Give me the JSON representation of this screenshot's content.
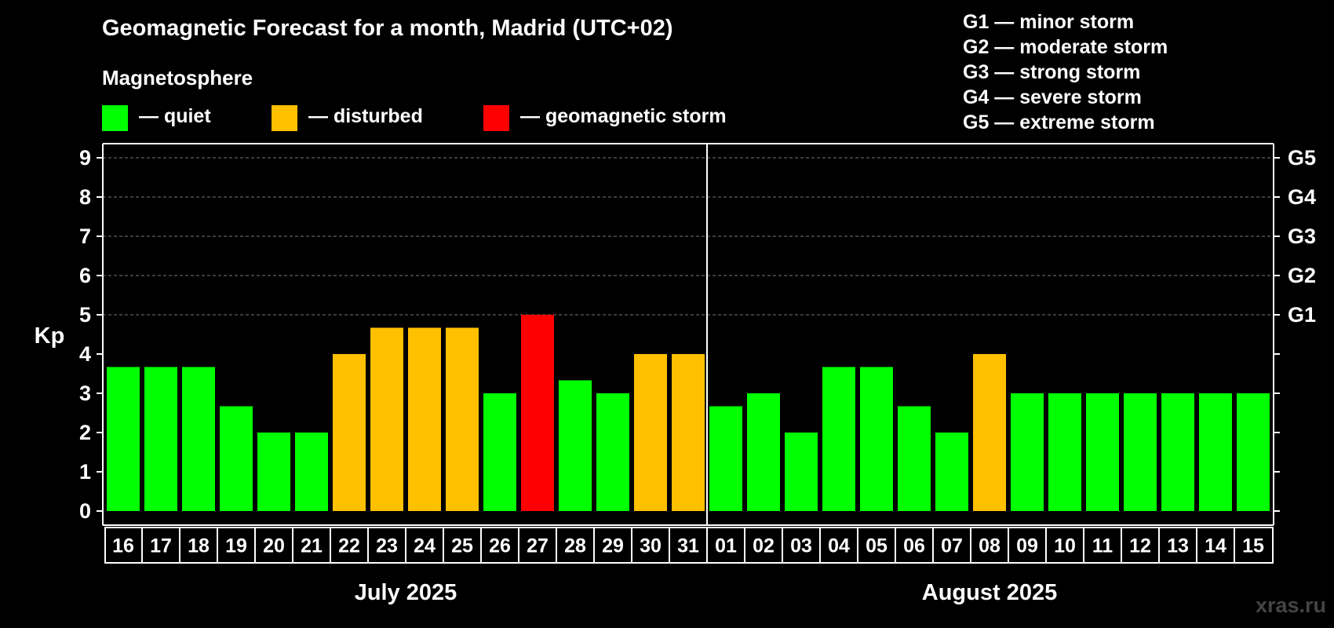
{
  "title": "Geomagnetic Forecast for a month, Madrid (UTC+02)",
  "legend": {
    "title": "Magnetosphere",
    "items": [
      {
        "label": "— quiet",
        "color": "#00ff00"
      },
      {
        "label": "— disturbed",
        "color": "#ffc000"
      },
      {
        "label": "— geomagnetic storm",
        "color": "#ff0000"
      }
    ]
  },
  "storm_scale": [
    "G1 — minor storm",
    "G2 — moderate storm",
    "G3 — strong storm",
    "G4 — severe storm",
    "G5 — extreme storm"
  ],
  "watermark": "xras.ru",
  "chart_data": {
    "type": "bar",
    "ylabel": "Kp",
    "ylim": [
      0,
      9
    ],
    "yticks": [
      0,
      1,
      2,
      3,
      4,
      5,
      6,
      7,
      8,
      9
    ],
    "right_ticks": [
      {
        "value": 5,
        "label": "G1"
      },
      {
        "value": 6,
        "label": "G2"
      },
      {
        "value": 7,
        "label": "G3"
      },
      {
        "value": 8,
        "label": "G4"
      },
      {
        "value": 9,
        "label": "G5"
      }
    ],
    "grid": "dashed horizontal",
    "months": [
      {
        "label": "July 2025",
        "start": 0,
        "count": 16
      },
      {
        "label": "August 2025",
        "start": 16,
        "count": 15
      }
    ],
    "categories": [
      "16",
      "17",
      "18",
      "19",
      "20",
      "21",
      "22",
      "23",
      "24",
      "25",
      "26",
      "27",
      "28",
      "29",
      "30",
      "31",
      "01",
      "02",
      "03",
      "04",
      "05",
      "06",
      "07",
      "08",
      "09",
      "10",
      "11",
      "12",
      "13",
      "14",
      "15"
    ],
    "values": [
      3.67,
      3.67,
      3.67,
      2.67,
      2,
      2,
      4,
      4.67,
      4.67,
      4.67,
      3,
      5,
      3.33,
      3,
      4,
      4,
      2.67,
      3,
      2,
      3.67,
      3.67,
      2.67,
      2,
      4,
      3,
      3,
      3,
      3,
      3,
      3,
      3
    ],
    "colors": [
      "#00ff00",
      "#00ff00",
      "#00ff00",
      "#00ff00",
      "#00ff00",
      "#00ff00",
      "#ffc000",
      "#ffc000",
      "#ffc000",
      "#ffc000",
      "#00ff00",
      "#ff0000",
      "#00ff00",
      "#00ff00",
      "#ffc000",
      "#ffc000",
      "#00ff00",
      "#00ff00",
      "#00ff00",
      "#00ff00",
      "#00ff00",
      "#00ff00",
      "#00ff00",
      "#ffc000",
      "#00ff00",
      "#00ff00",
      "#00ff00",
      "#00ff00",
      "#00ff00",
      "#00ff00",
      "#00ff00"
    ]
  }
}
